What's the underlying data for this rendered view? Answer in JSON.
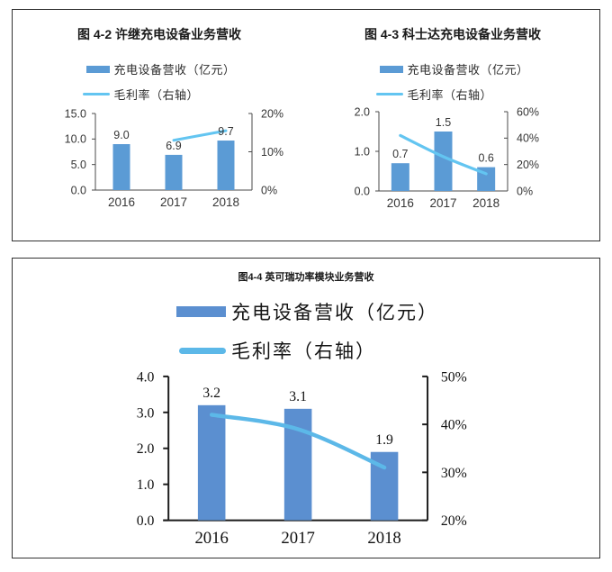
{
  "page": {
    "background": "#ffffff",
    "panel_border_color": "#333333"
  },
  "chart_data": [
    {
      "type": "bar+line",
      "title": "图 4-2 许继充电设备业务营收",
      "categories": [
        "2016",
        "2017",
        "2018"
      ],
      "series": [
        {
          "name": "充电设备营收（亿元）",
          "type": "bar",
          "axis": "left",
          "values": [
            9.0,
            6.9,
            9.7
          ],
          "labels": [
            "9.0",
            "6.9",
            "9.7"
          ],
          "color": "#5b9bd5"
        },
        {
          "name": "毛利率（右轴）",
          "type": "line",
          "axis": "right",
          "values": [
            null,
            13,
            15.5
          ],
          "color": "#63c5f1"
        }
      ],
      "left_axis": {
        "min": 0,
        "max": 15,
        "tick_values": [
          0,
          5,
          10,
          15
        ],
        "tick_labels": [
          "0.0",
          "5.0",
          "10.0",
          "15.0"
        ]
      },
      "right_axis": {
        "min": 0,
        "max": 20,
        "tick_values": [
          0,
          10,
          20
        ],
        "tick_labels": [
          "0%",
          "10%",
          "20%"
        ]
      },
      "legend_position": "top",
      "grid": false
    },
    {
      "type": "bar+line",
      "title": "图 4-3 科士达充电设备业务营收",
      "categories": [
        "2016",
        "2017",
        "2018"
      ],
      "series": [
        {
          "name": "充电设备营收（亿元）",
          "type": "bar",
          "axis": "left",
          "values": [
            0.7,
            1.5,
            0.6
          ],
          "labels": [
            "0.7",
            "1.5",
            "0.6"
          ],
          "color": "#5b9bd5"
        },
        {
          "name": "毛利率（右轴）",
          "type": "line",
          "axis": "right",
          "values": [
            42,
            26,
            13
          ],
          "color": "#63c5f1"
        }
      ],
      "left_axis": {
        "min": 0,
        "max": 2,
        "tick_values": [
          0,
          1,
          2
        ],
        "tick_labels": [
          "0.0",
          "1.0",
          "2.0"
        ]
      },
      "right_axis": {
        "min": 0,
        "max": 60,
        "tick_values": [
          0,
          20,
          40,
          60
        ],
        "tick_labels": [
          "0%",
          "20%",
          "40%",
          "60%"
        ]
      },
      "legend_position": "top",
      "grid": false
    },
    {
      "type": "bar+line",
      "title": "图4-4 英可瑞功率模块业务营收",
      "categories": [
        "2016",
        "2017",
        "2018"
      ],
      "series": [
        {
          "name": "充电设备营收（亿元）",
          "type": "bar",
          "axis": "left",
          "values": [
            3.2,
            3.1,
            1.9
          ],
          "labels": [
            "3.2",
            "3.1",
            "1.9"
          ],
          "color": "#5b8fd0"
        },
        {
          "name": "毛利率（右轴）",
          "type": "line",
          "axis": "right",
          "values": [
            42,
            39,
            31
          ],
          "color": "#5cb8e8"
        }
      ],
      "left_axis": {
        "min": 0,
        "max": 4,
        "tick_values": [
          0,
          1,
          2,
          3,
          4
        ],
        "tick_labels": [
          "0.0",
          "1.0",
          "2.0",
          "3.0",
          "4.0"
        ]
      },
      "right_axis": {
        "min": 20,
        "max": 50,
        "tick_values": [
          20,
          30,
          40,
          50
        ],
        "tick_labels": [
          "20%",
          "30%",
          "40%",
          "50%"
        ]
      },
      "legend_position": "top",
      "grid": false
    }
  ]
}
